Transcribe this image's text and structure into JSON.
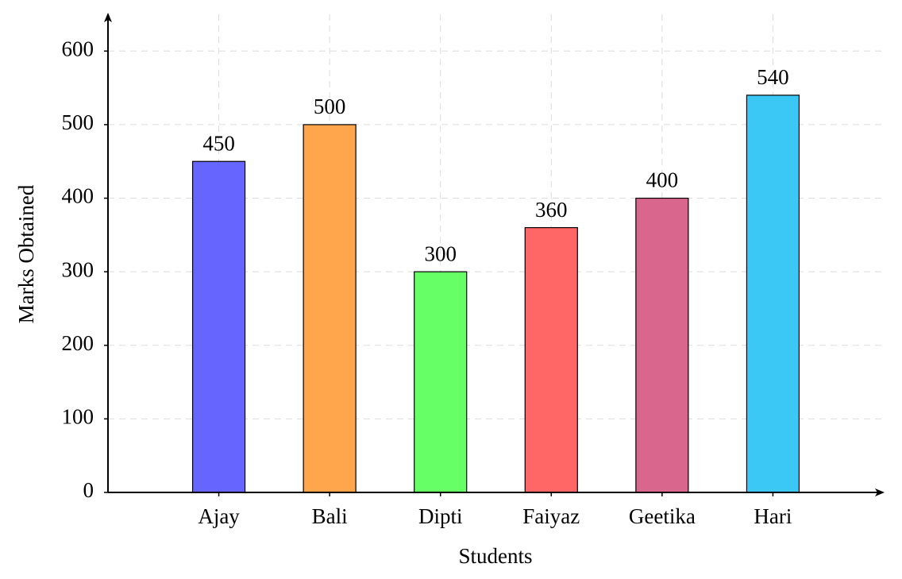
{
  "chart_data": {
    "type": "bar",
    "x_label": "Students",
    "y_label": "Marks Obtained",
    "categories": [
      "Ajay",
      "Bali",
      "Dipti",
      "Faiyaz",
      "Geetika",
      "Hari"
    ],
    "values": [
      450,
      500,
      300,
      360,
      400,
      540
    ],
    "colors": [
      "#6666ff",
      "#ffa64d",
      "#66ff66",
      "#ff6666",
      "#d9668c",
      "#3cc8f4"
    ],
    "ylim": [
      0,
      650
    ],
    "yticks": [
      0,
      100,
      200,
      300,
      400,
      500,
      600
    ],
    "grid": true
  }
}
